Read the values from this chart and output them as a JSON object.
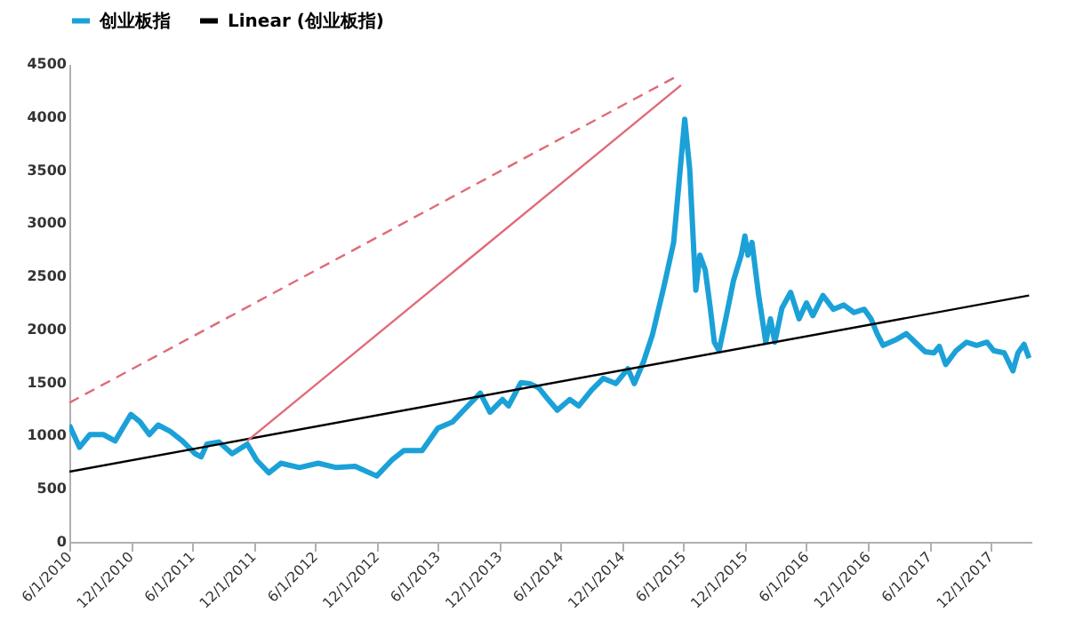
{
  "chart_data": {
    "type": "line",
    "legend": "top",
    "grid": false,
    "xlim": [
      "2010-06-01",
      "2018-04-01"
    ],
    "xticks": [
      {
        "value": "2010-06-01",
        "label": "6/1/2010"
      },
      {
        "value": "2010-12-01",
        "label": "12/1/2010"
      },
      {
        "value": "2011-06-01",
        "label": "6/1/2011"
      },
      {
        "value": "2011-12-01",
        "label": "12/1/2011"
      },
      {
        "value": "2012-06-01",
        "label": "6/1/2012"
      },
      {
        "value": "2012-12-01",
        "label": "12/1/2012"
      },
      {
        "value": "2013-06-01",
        "label": "6/1/2013"
      },
      {
        "value": "2013-12-01",
        "label": "12/1/2013"
      },
      {
        "value": "2014-06-01",
        "label": "6/1/2014"
      },
      {
        "value": "2014-12-01",
        "label": "12/1/2014"
      },
      {
        "value": "2015-06-01",
        "label": "6/1/2015"
      },
      {
        "value": "2015-12-01",
        "label": "12/1/2015"
      },
      {
        "value": "2016-06-01",
        "label": "6/1/2016"
      },
      {
        "value": "2016-12-01",
        "label": "12/1/2016"
      },
      {
        "value": "2017-06-01",
        "label": "6/1/2017"
      },
      {
        "value": "2017-12-01",
        "label": "12/1/2017"
      }
    ],
    "ylim": [
      0,
      4500
    ],
    "yticks": [
      0,
      500,
      1000,
      1500,
      2000,
      2500,
      3000,
      3500,
      4000,
      4500
    ],
    "series": [
      {
        "name": "创业板指",
        "color": "#1ba1d8",
        "line_style": "solid",
        "x": [
          "2010-06-01",
          "2010-07-01",
          "2010-08-01",
          "2010-09-10",
          "2010-10-15",
          "2010-12-01",
          "2010-12-28",
          "2011-01-25",
          "2011-02-20",
          "2011-03-28",
          "2011-05-03",
          "2011-06-10",
          "2011-06-28",
          "2011-07-15",
          "2011-08-20",
          "2011-09-28",
          "2011-11-12",
          "2011-12-10",
          "2012-01-15",
          "2012-02-20",
          "2012-04-15",
          "2012-06-10",
          "2012-08-03",
          "2012-09-28",
          "2012-12-01",
          "2013-01-15",
          "2013-02-20",
          "2013-04-15",
          "2013-06-01",
          "2013-07-15",
          "2013-08-20",
          "2013-10-05",
          "2013-11-03",
          "2013-12-10",
          "2013-12-28",
          "2014-02-03",
          "2014-03-01",
          "2014-03-28",
          "2014-04-25",
          "2014-05-22",
          "2014-06-28",
          "2014-07-25",
          "2014-09-01",
          "2014-10-06",
          "2014-11-12",
          "2014-12-18",
          "2015-01-06",
          "2015-02-03",
          "2015-03-01",
          "2015-04-06",
          "2015-05-03",
          "2015-06-05",
          "2015-06-20",
          "2015-07-01",
          "2015-07-08",
          "2015-07-20",
          "2015-08-05",
          "2015-08-20",
          "2015-09-01",
          "2015-09-15",
          "2015-10-05",
          "2015-10-28",
          "2015-11-20",
          "2015-12-01",
          "2015-12-10",
          "2015-12-22",
          "2016-01-10",
          "2016-02-01",
          "2016-02-15",
          "2016-02-28",
          "2016-03-20",
          "2016-04-15",
          "2016-05-10",
          "2016-06-01",
          "2016-06-20",
          "2016-07-20",
          "2016-08-20",
          "2016-09-20",
          "2016-10-20",
          "2016-11-20",
          "2016-12-10",
          "2016-12-28",
          "2017-01-15",
          "2017-02-20",
          "2017-03-25",
          "2017-04-20",
          "2017-05-20",
          "2017-06-15",
          "2017-07-01",
          "2017-07-20",
          "2017-08-20",
          "2017-09-20",
          "2017-10-20",
          "2017-11-20",
          "2017-12-10",
          "2018-01-10",
          "2018-02-05",
          "2018-02-20",
          "2018-03-10",
          "2018-03-25"
        ],
        "values": [
          1100,
          890,
          1010,
          1010,
          950,
          1200,
          1130,
          1010,
          1100,
          1040,
          950,
          830,
          800,
          920,
          940,
          830,
          920,
          770,
          650,
          740,
          700,
          740,
          700,
          710,
          620,
          770,
          860,
          860,
          1070,
          1130,
          1250,
          1400,
          1220,
          1340,
          1280,
          1500,
          1490,
          1450,
          1340,
          1240,
          1340,
          1280,
          1430,
          1540,
          1490,
          1630,
          1490,
          1700,
          1950,
          2430,
          2820,
          3980,
          3500,
          2800,
          2370,
          2700,
          2560,
          2200,
          1880,
          1800,
          2100,
          2460,
          2700,
          2880,
          2700,
          2820,
          2340,
          1880,
          2100,
          1880,
          2200,
          2350,
          2100,
          2250,
          2130,
          2320,
          2190,
          2230,
          2160,
          2190,
          2100,
          1960,
          1850,
          1900,
          1960,
          1880,
          1790,
          1780,
          1840,
          1670,
          1800,
          1880,
          1850,
          1880,
          1800,
          1780,
          1610,
          1780,
          1860,
          1730
        ]
      },
      {
        "name": "Linear (创业板指)",
        "color": "#000000",
        "line_style": "solid",
        "x": [
          "2010-06-01",
          "2018-03-25"
        ],
        "values": [
          660,
          2320
        ]
      },
      {
        "color": "#e06a78",
        "line_style": "dashed",
        "x": [
          "2010-06-01",
          "2015-05-10"
        ],
        "values": [
          1310,
          4380
        ]
      },
      {
        "color": "#e06a78",
        "line_style": "solid",
        "x": [
          "2011-11-12",
          "2015-05-25"
        ],
        "values": [
          950,
          4300
        ]
      }
    ]
  }
}
